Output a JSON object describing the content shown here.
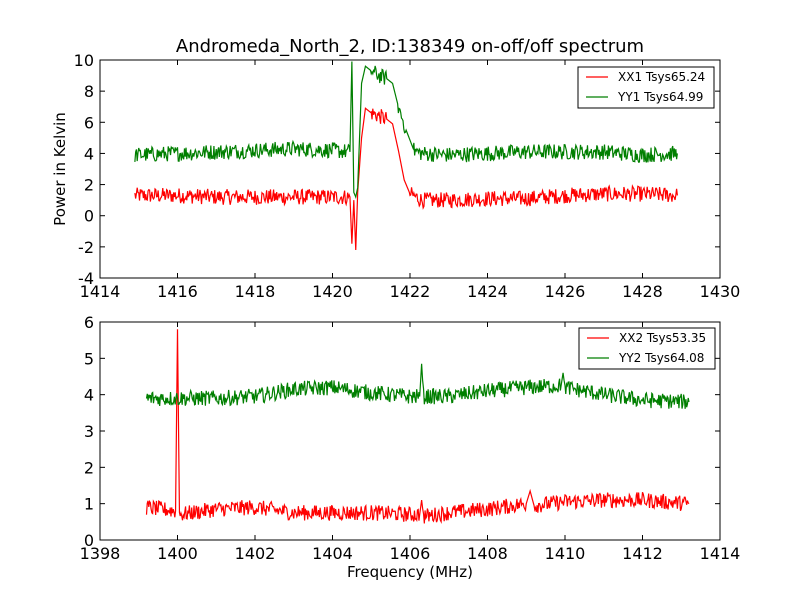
{
  "title": "Andromeda_North_2, ID:138349 on-off/off spectrum",
  "colors": {
    "red": "#ff0000",
    "green": "#007f00"
  },
  "chart_data": [
    {
      "type": "line",
      "ylabel": "Power in Kelvin",
      "xlabel": "",
      "xlim": [
        1414,
        1430
      ],
      "ylim": [
        -4,
        10
      ],
      "xticks": [
        "1414",
        "1416",
        "1418",
        "1420",
        "1422",
        "1424",
        "1426",
        "1428",
        "1430"
      ],
      "yticks": [
        "-4",
        "-2",
        "0",
        "2",
        "4",
        "6",
        "8",
        "10"
      ],
      "legend_position": "top-right",
      "series": [
        {
          "name": "XX1 Tsys65.24",
          "color": "#ff0000",
          "points": [
            [
              1414.9,
              1.3
            ],
            [
              1416.0,
              1.3
            ],
            [
              1417.0,
              1.2
            ],
            [
              1418.0,
              1.2
            ],
            [
              1419.0,
              1.2
            ],
            [
              1420.0,
              1.2
            ],
            [
              1420.45,
              1.2
            ],
            [
              1420.5,
              -1.8
            ],
            [
              1420.55,
              1.0
            ],
            [
              1420.6,
              -2.2
            ],
            [
              1420.65,
              1.5
            ],
            [
              1420.75,
              5.0
            ],
            [
              1420.85,
              6.9
            ],
            [
              1421.0,
              6.6
            ],
            [
              1421.2,
              6.4
            ],
            [
              1421.4,
              6.2
            ],
            [
              1421.55,
              5.9
            ],
            [
              1421.7,
              4.2
            ],
            [
              1421.85,
              2.3
            ],
            [
              1422.0,
              1.4
            ],
            [
              1422.3,
              1.0
            ],
            [
              1423.0,
              1.0
            ],
            [
              1424.0,
              1.1
            ],
            [
              1425.0,
              1.1
            ],
            [
              1426.0,
              1.3
            ],
            [
              1427.0,
              1.4
            ],
            [
              1428.0,
              1.4
            ],
            [
              1428.9,
              1.3
            ]
          ]
        },
        {
          "name": "YY1 Tsys64.99",
          "color": "#007f00",
          "points": [
            [
              1414.9,
              3.9
            ],
            [
              1416.0,
              4.0
            ],
            [
              1417.0,
              4.1
            ],
            [
              1418.0,
              4.2
            ],
            [
              1419.0,
              4.3
            ],
            [
              1420.0,
              4.2
            ],
            [
              1420.45,
              4.1
            ],
            [
              1420.5,
              9.9
            ],
            [
              1420.55,
              1.5
            ],
            [
              1420.6,
              1.2
            ],
            [
              1420.65,
              1.8
            ],
            [
              1420.75,
              8.5
            ],
            [
              1420.85,
              9.6
            ],
            [
              1421.0,
              9.3
            ],
            [
              1421.2,
              9.0
            ],
            [
              1421.4,
              8.8
            ],
            [
              1421.55,
              8.5
            ],
            [
              1421.7,
              7.0
            ],
            [
              1421.9,
              5.5
            ],
            [
              1422.1,
              4.2
            ],
            [
              1422.3,
              4.0
            ],
            [
              1423.0,
              3.9
            ],
            [
              1424.0,
              4.0
            ],
            [
              1425.0,
              4.1
            ],
            [
              1426.0,
              4.1
            ],
            [
              1427.0,
              4.1
            ],
            [
              1428.0,
              3.9
            ],
            [
              1428.9,
              4.0
            ]
          ]
        }
      ]
    },
    {
      "type": "line",
      "ylabel": "",
      "xlabel": "Frequency (MHz)",
      "xlim": [
        1398,
        1414
      ],
      "ylim": [
        0,
        6
      ],
      "xticks": [
        "1398",
        "1400",
        "1402",
        "1404",
        "1406",
        "1408",
        "1410",
        "1412",
        "1414"
      ],
      "yticks": [
        "0",
        "1",
        "2",
        "3",
        "4",
        "5",
        "6"
      ],
      "legend_position": "top-right",
      "series": [
        {
          "name": "XX2 Tsys53.35",
          "color": "#ff0000",
          "points": [
            [
              1399.2,
              0.9
            ],
            [
              1399.95,
              0.8
            ],
            [
              1400.0,
              5.8
            ],
            [
              1400.05,
              0.7
            ],
            [
              1401.0,
              0.85
            ],
            [
              1402.0,
              0.9
            ],
            [
              1403.0,
              0.75
            ],
            [
              1404.0,
              0.75
            ],
            [
              1405.0,
              0.75
            ],
            [
              1406.0,
              0.7
            ],
            [
              1406.25,
              0.7
            ],
            [
              1406.3,
              1.1
            ],
            [
              1406.35,
              0.65
            ],
            [
              1407.0,
              0.75
            ],
            [
              1408.0,
              0.85
            ],
            [
              1409.0,
              1.0
            ],
            [
              1409.1,
              1.35
            ],
            [
              1409.2,
              0.95
            ],
            [
              1410.0,
              1.05
            ],
            [
              1411.0,
              1.1
            ],
            [
              1412.0,
              1.1
            ],
            [
              1413.2,
              1.0
            ]
          ]
        },
        {
          "name": "YY2 Tsys64.08",
          "color": "#007f00",
          "points": [
            [
              1399.2,
              3.9
            ],
            [
              1400.0,
              3.9
            ],
            [
              1401.0,
              3.9
            ],
            [
              1402.0,
              3.95
            ],
            [
              1403.0,
              4.15
            ],
            [
              1404.0,
              4.2
            ],
            [
              1405.0,
              4.05
            ],
            [
              1406.0,
              3.95
            ],
            [
              1406.25,
              3.95
            ],
            [
              1406.3,
              4.85
            ],
            [
              1406.35,
              3.95
            ],
            [
              1407.0,
              3.95
            ],
            [
              1408.0,
              4.1
            ],
            [
              1409.0,
              4.2
            ],
            [
              1409.9,
              4.25
            ],
            [
              1409.95,
              4.6
            ],
            [
              1410.0,
              4.2
            ],
            [
              1411.0,
              4.0
            ],
            [
              1412.0,
              3.85
            ],
            [
              1413.2,
              3.8
            ]
          ]
        }
      ]
    }
  ]
}
